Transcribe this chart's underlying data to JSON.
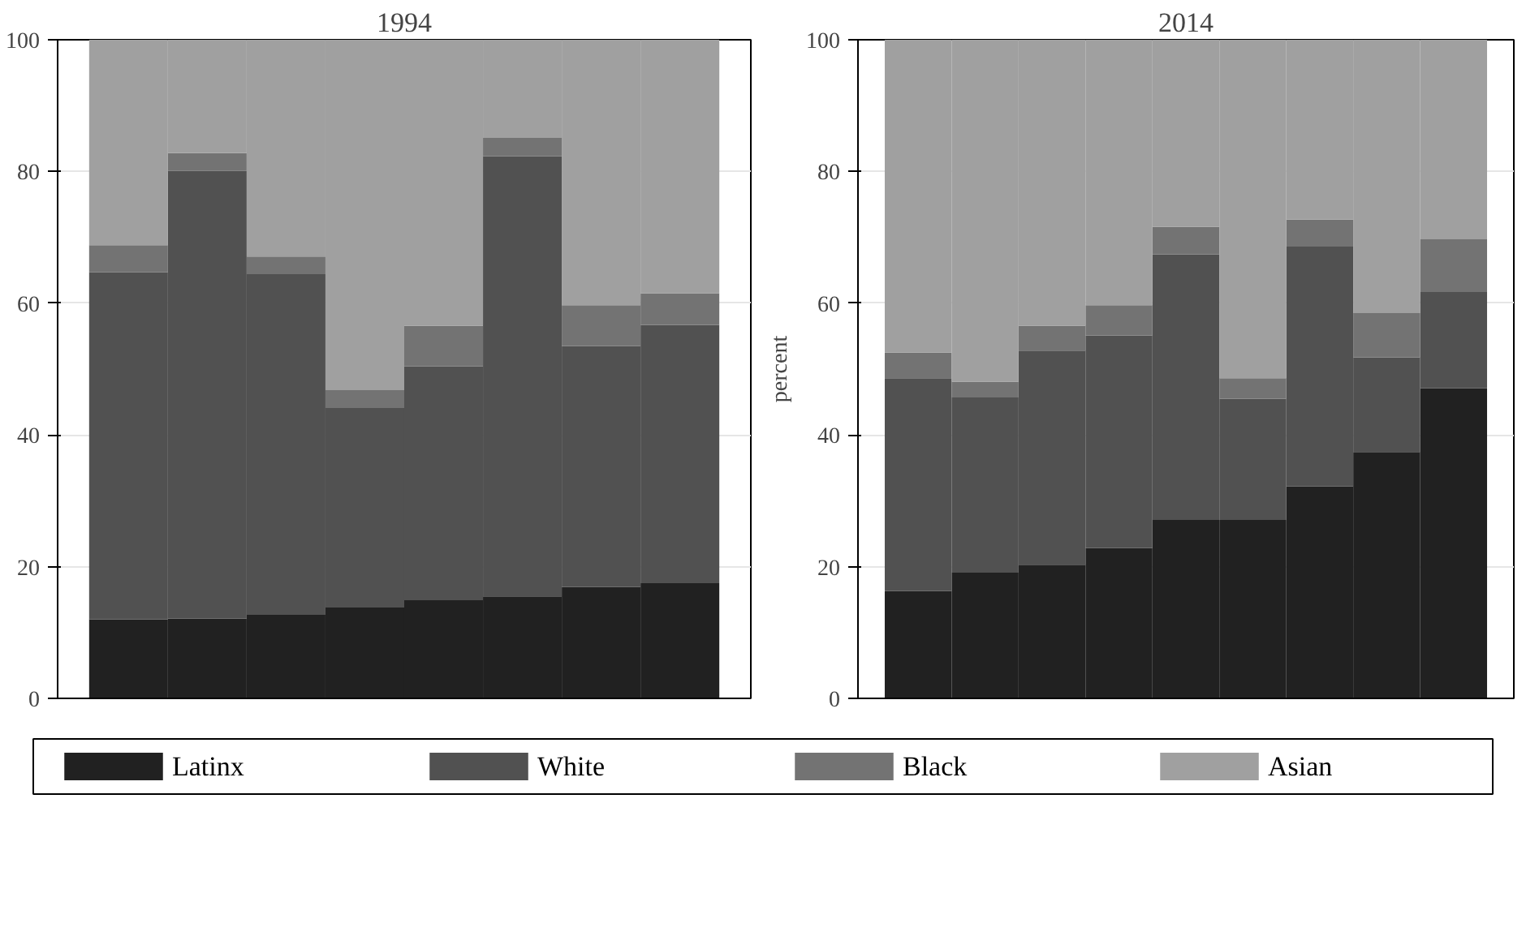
{
  "chart_data": [
    {
      "type": "bar",
      "title": "1994",
      "stacked": true,
      "categories": [
        null,
        null,
        null,
        null,
        null,
        null,
        null,
        null
      ],
      "ylim": [
        0,
        100
      ],
      "yticks": [
        0,
        20,
        40,
        60,
        80,
        100
      ],
      "grid": "y",
      "legend": "bottom",
      "tick_labels": "y",
      "series": [
        {
          "name": "Latinx",
          "color": "#212121",
          "values": [
            12,
            12.1,
            12.7,
            13.8,
            14.9,
            15.5,
            16.9,
            17.5
          ]
        },
        {
          "name": "White",
          "color": "#515151",
          "values": [
            52.7,
            68,
            51.7,
            30.3,
            35.5,
            66.8,
            36.6,
            39.2
          ]
        },
        {
          "name": "Black",
          "color": "#737373",
          "values": [
            4.1,
            2.7,
            2.7,
            2.7,
            6.2,
            2.8,
            6.2,
            4.8
          ]
        },
        {
          "name": "Asian",
          "color": "#a0a0a0",
          "values": [
            31.2,
            17.2,
            32.9,
            53.2,
            43.4,
            14.9,
            40.3,
            38.5
          ]
        }
      ]
    },
    {
      "type": "bar",
      "title": "2014",
      "ylabel": "percent",
      "stacked": true,
      "categories": [
        null,
        null,
        null,
        null,
        null,
        null,
        null,
        null,
        null
      ],
      "ylim": [
        0,
        100
      ],
      "yticks": [
        0,
        20,
        40,
        60,
        80,
        100
      ],
      "grid": "y",
      "tick_labels": "y",
      "series": [
        {
          "color": "#212121",
          "values": [
            16.3,
            19.1,
            20.3,
            22.8,
            27.1,
            27.1,
            32.2,
            37.4,
            47.1
          ]
        },
        {
          "color": "#515151",
          "values": [
            32.3,
            26.6,
            32.5,
            32.3,
            40.3,
            18.4,
            36.4,
            14.4,
            14.6
          ]
        },
        {
          "color": "#737373",
          "values": [
            3.9,
            2.4,
            3.8,
            4.6,
            4.2,
            3.1,
            4.1,
            6.7,
            8.0
          ]
        },
        {
          "color": "#a0a0a0",
          "values": [
            47.5,
            51.9,
            43.4,
            40.3,
            28.4,
            51.4,
            27.3,
            41.5,
            30.3
          ]
        }
      ]
    }
  ]
}
